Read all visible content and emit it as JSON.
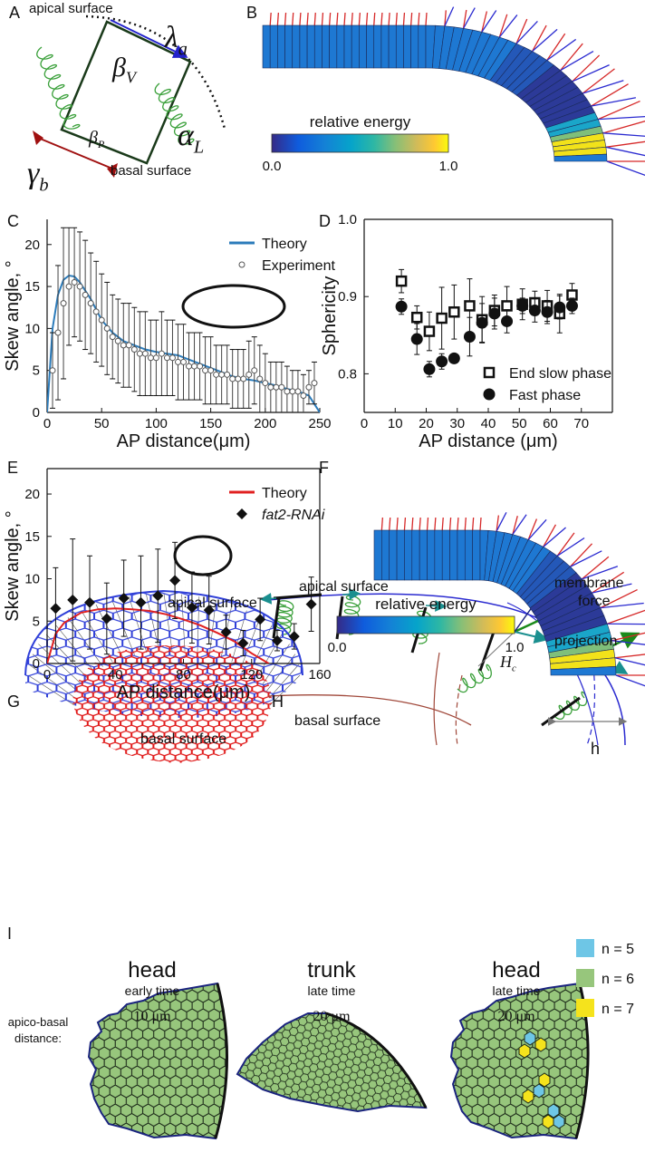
{
  "panels": {
    "labels": [
      "A",
      "B",
      "C",
      "D",
      "E",
      "F",
      "G",
      "H",
      "I"
    ]
  },
  "panel_a": {
    "apical": "apical surface",
    "basal": "basal surface",
    "symbols": [
      {
        "symbol": "λ",
        "sub": "a"
      },
      {
        "symbol": "β",
        "sub": "V"
      },
      {
        "symbol": "β",
        "sub": "P"
      },
      {
        "symbol": "α",
        "sub": "L"
      },
      {
        "symbol": "γ",
        "sub": "b"
      }
    ]
  },
  "energy_bars": [
    {
      "title": "relative energy",
      "min_label": "0.0",
      "max_label": "1.0"
    },
    {
      "title": "relative energy",
      "min_label": "0.0",
      "max_label": "1.0"
    }
  ],
  "chart_data": [
    {
      "type": "line",
      "xlabel": "AP distance(μm)",
      "ylabel": "Skew angle, °",
      "xlim": [
        0,
        250
      ],
      "ylim": [
        0,
        23
      ],
      "xticks": [
        0,
        50,
        100,
        150,
        200,
        250
      ],
      "yticks": [
        0,
        5,
        10,
        15,
        20
      ],
      "box": false,
      "legend_position": "upper right",
      "series": [
        {
          "name": "Theory",
          "type": "line",
          "color": "#2b7bba",
          "x": [
            0,
            5,
            10,
            15,
            20,
            25,
            30,
            40,
            50,
            60,
            70,
            80,
            90,
            100,
            110,
            120,
            130,
            140,
            150,
            160,
            170,
            180,
            190,
            200,
            210,
            220,
            230,
            240,
            250
          ],
          "values": [
            0,
            10,
            14,
            15.8,
            16.3,
            16.2,
            15.5,
            13.5,
            11,
            9.5,
            8.5,
            8,
            7.5,
            7.2,
            7,
            6.8,
            6.3,
            5.8,
            5.3,
            4.8,
            4.3,
            4,
            3.8,
            3.5,
            3.2,
            2.8,
            2.5,
            2,
            0
          ]
        },
        {
          "name": "Experiment",
          "type": "scatter",
          "marker": "circle-open",
          "color": "#555555",
          "x": [
            5,
            10,
            15,
            20,
            25,
            30,
            35,
            40,
            45,
            50,
            55,
            60,
            65,
            70,
            75,
            80,
            85,
            90,
            95,
            100,
            105,
            110,
            115,
            120,
            125,
            130,
            135,
            140,
            145,
            150,
            155,
            160,
            165,
            170,
            175,
            180,
            185,
            190,
            195,
            200,
            205,
            210,
            215,
            220,
            225,
            230,
            235,
            240,
            245
          ],
          "values": [
            5,
            9.5,
            13,
            15,
            15.5,
            15,
            14,
            13,
            12,
            11,
            10,
            9,
            8.5,
            8,
            8,
            7.5,
            7,
            7,
            6.5,
            6.5,
            7,
            6.5,
            6.5,
            6,
            6,
            5.5,
            5.5,
            5.5,
            5,
            5,
            4.5,
            4.5,
            4.5,
            4,
            4,
            4,
            4.5,
            5,
            4,
            3.5,
            3,
            3,
            3,
            2.5,
            2.5,
            2.5,
            2,
            3,
            3.5
          ],
          "errors": [
            4.5,
            8,
            9,
            7,
            6.5,
            6.5,
            6.5,
            6,
            6,
            5.5,
            5.5,
            5,
            5,
            5,
            5,
            5,
            5,
            5,
            4.5,
            4.5,
            5,
            4.5,
            4.5,
            4.5,
            4.5,
            4,
            4,
            4,
            4,
            4,
            3.5,
            3.5,
            3.5,
            3.5,
            3.5,
            3.5,
            4,
            4,
            4,
            3.5,
            3,
            3,
            3,
            3,
            2.5,
            2.5,
            2.5,
            2,
            2.5
          ]
        }
      ]
    },
    {
      "type": "scatter",
      "xlabel": "AP distance (μm)",
      "ylabel": "Sphericity",
      "xlim": [
        0,
        80
      ],
      "ylim": [
        0.75,
        1.0
      ],
      "xticks": [
        0,
        10,
        20,
        30,
        40,
        50,
        60,
        70
      ],
      "yticks": [
        0.8,
        0.9,
        {
          "value": 1,
          "label": "1.0"
        }
      ],
      "box": true,
      "legend_position": "lower right",
      "series": [
        {
          "name": "End slow phase",
          "type": "scatter",
          "marker": "square-open",
          "color": "#111111",
          "x": [
            12,
            17,
            21,
            25,
            29,
            34,
            38,
            42,
            46,
            51,
            55,
            59,
            63,
            67
          ],
          "values": [
            0.92,
            0.873,
            0.855,
            0.872,
            0.88,
            0.888,
            0.87,
            0.882,
            0.888,
            0.89,
            0.892,
            0.888,
            0.878,
            0.902
          ],
          "errors": [
            0.015,
            0.015,
            0.025,
            0.04,
            0.035,
            0.035,
            0.03,
            0.02,
            0.025,
            0.02,
            0.015,
            0.02,
            0.025,
            0.015
          ]
        },
        {
          "name": "Fast phase",
          "type": "scatter",
          "marker": "circle",
          "color": "#111111",
          "x": [
            12,
            17,
            21,
            25,
            29,
            34,
            38,
            42,
            46,
            51,
            55,
            59,
            63,
            67
          ],
          "values": [
            0.887,
            0.845,
            0.806,
            0.816,
            0.82,
            0.848,
            0.866,
            0.878,
            0.868,
            0.888,
            0.882,
            0.88,
            0.886,
            0.888
          ],
          "errors": [
            0.01,
            0.02,
            0.01,
            0.01,
            0.005,
            0.025,
            0.025,
            0.02,
            0.015,
            0.01,
            0.015,
            0.015,
            0.015,
            0.01
          ]
        }
      ]
    },
    {
      "type": "line",
      "xlabel": "AP distance(μm)",
      "ylabel": "Skew angle, °",
      "xlim": [
        0,
        160
      ],
      "ylim": [
        0,
        23
      ],
      "xticks": [
        0,
        40,
        80,
        120,
        160
      ],
      "yticks": [
        0,
        5,
        10,
        15,
        20
      ],
      "box": true,
      "legend_position": "upper right",
      "series": [
        {
          "name": "Theory",
          "type": "line",
          "color": "#e02020",
          "x": [
            0,
            5,
            10,
            20,
            30,
            40,
            50,
            60,
            70,
            80,
            90,
            100,
            110,
            120,
            130
          ],
          "values": [
            0,
            3.5,
            4.8,
            6,
            6.4,
            6.5,
            6.4,
            6.2,
            5.8,
            5.2,
            4.5,
            3.6,
            2.6,
            1.2,
            0
          ]
        },
        {
          "name": "fat2-RNAi",
          "type": "scatter",
          "marker": "diamond",
          "color": "#111111",
          "font_style": "italic",
          "x": [
            5,
            15,
            25,
            35,
            45,
            55,
            65,
            75,
            85,
            95,
            105,
            115,
            125,
            135,
            145,
            155
          ],
          "values": [
            6.5,
            7.5,
            7.2,
            5.3,
            7.7,
            7.2,
            8,
            9.8,
            6.6,
            6.3,
            3.7,
            2.4,
            5.2,
            2.7,
            3.2,
            7
          ],
          "errors": [
            4.8,
            7.2,
            5.5,
            4.2,
            4.5,
            5.5,
            5.5,
            4.5,
            4.2,
            4,
            2,
            1.5,
            2.5,
            1.2,
            1.5,
            3.2
          ]
        }
      ]
    }
  ],
  "panel_g": {
    "apical": "apical surface",
    "basal": "basal surface"
  },
  "panel_h": {
    "apical": "apical surface",
    "basal": "basal surface",
    "force": "membrane",
    "force2": "force",
    "projection": "projection",
    "hc": {
      "symbol": "H",
      "sub": "c"
    },
    "h": "h"
  },
  "panel_i": {
    "row_label": "apico-basal",
    "row_label2": "distance:",
    "columns": [
      {
        "region": "head",
        "time": "early time",
        "distance": "10 μm"
      },
      {
        "region": "trunk",
        "time": "late time",
        "distance": "20 μm"
      },
      {
        "region": "head",
        "time": "late time",
        "distance": "20 μm"
      }
    ],
    "legend": [
      {
        "label": "n = 5",
        "color": "#6ec6e6"
      },
      {
        "label": "n = 6",
        "color": "#97c67c"
      },
      {
        "label": "n = 7",
        "color": "#f5e31c"
      }
    ]
  }
}
